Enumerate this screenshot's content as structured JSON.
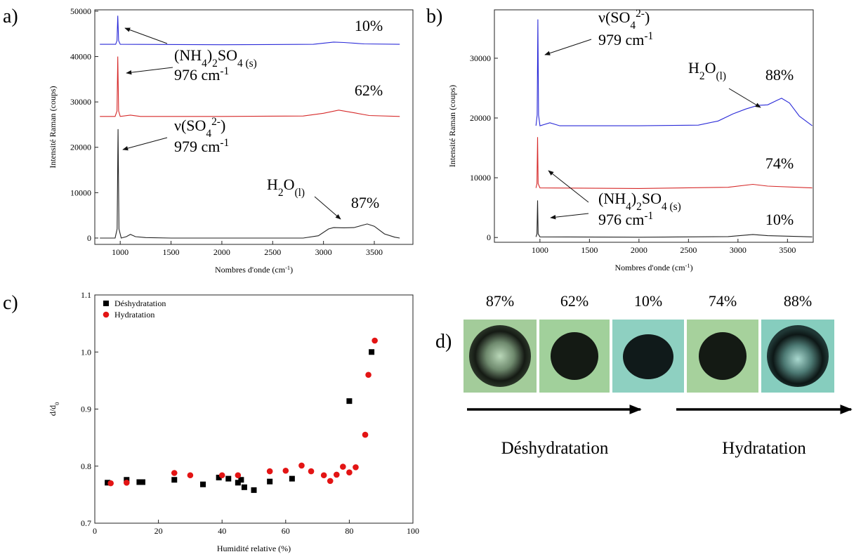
{
  "panels": [
    "a)",
    "b)",
    "c)",
    "d)"
  ],
  "chart_data": [
    {
      "type": "line",
      "xlabel": [
        [
          "Nombres d'onde (cm",
          ""
        ],
        [
          "-1",
          "sup"
        ],
        [
          ")",
          ""
        ]
      ],
      "ylabel": [
        [
          "Intensité Raman (coups)",
          ""
        ]
      ],
      "xlim": [
        750,
        3880
      ],
      "ylim": [
        -1400,
        50300
      ],
      "xticks": [
        1000,
        1500,
        2000,
        2500,
        3000,
        3500
      ],
      "yticks": [
        0,
        10000,
        20000,
        30000,
        40000,
        50000
      ],
      "series": [
        {
          "name": "87%",
          "color": "#222222",
          "x": [
            800,
            950,
            970,
            979,
            988,
            1010,
            1060,
            1100,
            1150,
            1250,
            1500,
            2000,
            2500,
            2800,
            2950,
            3050,
            3100,
            3200,
            3300,
            3380,
            3430,
            3500,
            3600,
            3700,
            3750
          ],
          "values": [
            0,
            0,
            2000,
            24000,
            2000,
            0,
            300,
            800,
            300,
            100,
            0,
            0,
            0,
            0,
            500,
            2000,
            2300,
            2250,
            2300,
            2800,
            3100,
            2600,
            900,
            200,
            0
          ]
        },
        {
          "name": "62%",
          "color": "#d62a2a",
          "x": [
            800,
            950,
            968,
            976,
            984,
            1000,
            1100,
            1200,
            2000,
            2800,
            3000,
            3150,
            3300,
            3450,
            3750
          ],
          "values": [
            26800,
            26800,
            28000,
            40000,
            28000,
            26800,
            27100,
            26800,
            26800,
            26900,
            27500,
            28200,
            27600,
            27000,
            26800
          ]
        },
        {
          "name": "10%",
          "color": "#2b2bd8",
          "x": [
            800,
            955,
            968,
            976,
            984,
            1000,
            2000,
            2900,
            3100,
            3200,
            3400,
            3750
          ],
          "values": [
            42700,
            42700,
            43500,
            49000,
            43500,
            42700,
            42600,
            42700,
            43200,
            43100,
            42800,
            42700
          ]
        }
      ],
      "annotations": [
        {
          "runs": [
            [
              "(NH",
              ""
            ],
            [
              "4",
              "sub"
            ],
            [
              ")",
              ""
            ],
            [
              "2",
              "sub"
            ],
            [
              "SO",
              ""
            ],
            [
              "4",
              "sub"
            ],
            [
              " (s)",
              "sub"
            ]
          ]
        },
        {
          "runs": [
            [
              "976 cm",
              ""
            ],
            [
              "-1",
              "sup"
            ]
          ]
        },
        {
          "runs": [
            [
              "ν(SO",
              ""
            ],
            [
              "4",
              "sub"
            ],
            [
              "2-",
              "sup"
            ],
            [
              ")",
              ""
            ]
          ]
        },
        {
          "runs": [
            [
              "979 cm",
              ""
            ],
            [
              "-1",
              "sup"
            ]
          ]
        },
        {
          "runs": [
            [
              "H",
              ""
            ],
            [
              "2",
              "sub"
            ],
            [
              "O",
              ""
            ],
            [
              "(l)",
              "sub"
            ]
          ]
        }
      ]
    },
    {
      "type": "line",
      "xlabel": [
        [
          "Nombres d'onde (cm",
          ""
        ],
        [
          "-1",
          "sup"
        ],
        [
          ")",
          ""
        ]
      ],
      "ylabel": [
        [
          "Intensité Raman (coups)",
          ""
        ]
      ],
      "xlim": [
        540,
        3760
      ],
      "ylim": [
        -800,
        38100
      ],
      "xticks": [
        1000,
        1500,
        2000,
        2500,
        3000,
        3500
      ],
      "yticks": [
        0,
        10000,
        20000,
        30000
      ],
      "series": [
        {
          "name": "10%",
          "color": "#222222",
          "x": [
            960,
            970,
            976,
            982,
            1000,
            2000,
            2900,
            3150,
            3300,
            3750
          ],
          "values": [
            100,
            600,
            6200,
            600,
            100,
            50,
            150,
            500,
            300,
            100
          ]
        },
        {
          "name": "74%",
          "color": "#d62a2a",
          "x": [
            960,
            970,
            976,
            982,
            1000,
            2000,
            2900,
            3150,
            3300,
            3750
          ],
          "values": [
            8300,
            9000,
            16800,
            9000,
            8300,
            8200,
            8400,
            8900,
            8600,
            8300
          ]
        },
        {
          "name": "88%",
          "color": "#2b2bd8",
          "x": [
            960,
            972,
            979,
            986,
            1000,
            1100,
            1200,
            2000,
            2600,
            2800,
            2950,
            3080,
            3200,
            3300,
            3400,
            3440,
            3520,
            3620,
            3750
          ],
          "values": [
            18700,
            20500,
            36500,
            20500,
            18700,
            19200,
            18700,
            18700,
            18800,
            19500,
            20700,
            21500,
            22100,
            22200,
            23000,
            23300,
            22500,
            20300,
            18700
          ]
        }
      ],
      "annotations": [
        {
          "runs": [
            [
              "ν(SO",
              ""
            ],
            [
              "4",
              "sub"
            ],
            [
              "2-",
              "sup"
            ],
            [
              ")",
              ""
            ]
          ]
        },
        {
          "runs": [
            [
              "979 cm",
              ""
            ],
            [
              "-1",
              "sup"
            ]
          ]
        },
        {
          "runs": [
            [
              "H",
              ""
            ],
            [
              "2",
              "sub"
            ],
            [
              "O",
              ""
            ],
            [
              "(l)",
              "sub"
            ]
          ]
        },
        {
          "runs": [
            [
              "(NH",
              ""
            ],
            [
              "4",
              "sub"
            ],
            [
              ")",
              ""
            ],
            [
              "2",
              "sub"
            ],
            [
              "SO",
              ""
            ],
            [
              "4",
              "sub"
            ],
            [
              " (s)",
              "sub"
            ]
          ]
        },
        {
          "runs": [
            [
              "976 cm",
              ""
            ],
            [
              "-1",
              "sup"
            ]
          ]
        }
      ]
    },
    {
      "type": "scatter",
      "xlabel": [
        [
          "Humidité relative (%)",
          ""
        ]
      ],
      "ylabel": [
        [
          "d/d",
          ""
        ],
        [
          "0",
          "sub"
        ]
      ],
      "xlim": [
        0,
        100
      ],
      "ylim": [
        0.7,
        1.1
      ],
      "xticks": [
        0,
        20,
        40,
        60,
        80,
        100
      ],
      "yticks": [
        0.7,
        0.8,
        0.9,
        {
          "value": 1,
          "label": "1.0"
        },
        1.1
      ],
      "legend": "upper left",
      "series": [
        {
          "name": "Déshydratation",
          "color": "#000000",
          "marker": "square",
          "x": [
            4,
            10,
            14,
            15,
            25,
            34,
            39,
            42,
            45,
            46,
            47,
            50,
            55,
            62,
            80,
            87
          ],
          "values": [
            0.771,
            0.776,
            0.772,
            0.772,
            0.776,
            0.768,
            0.78,
            0.778,
            0.771,
            0.776,
            0.763,
            0.758,
            0.773,
            0.778,
            0.914,
            1.0
          ]
        },
        {
          "name": "Hydratation",
          "color": "#e31414",
          "marker": "circle",
          "x": [
            5,
            10,
            25,
            30,
            40,
            45,
            55,
            60,
            65,
            68,
            72,
            74,
            76,
            78,
            80,
            82,
            85,
            86,
            88
          ],
          "values": [
            0.77,
            0.771,
            0.788,
            0.784,
            0.784,
            0.784,
            0.791,
            0.792,
            0.801,
            0.791,
            0.784,
            0.774,
            0.785,
            0.799,
            0.789,
            0.798,
            0.855,
            0.96,
            1.02
          ]
        }
      ]
    }
  ],
  "panel_d": {
    "labels": [
      "87%",
      "62%",
      "10%",
      "74%",
      "88%"
    ],
    "arrows": [
      "Déshydratation",
      "Hydratation"
    ]
  }
}
